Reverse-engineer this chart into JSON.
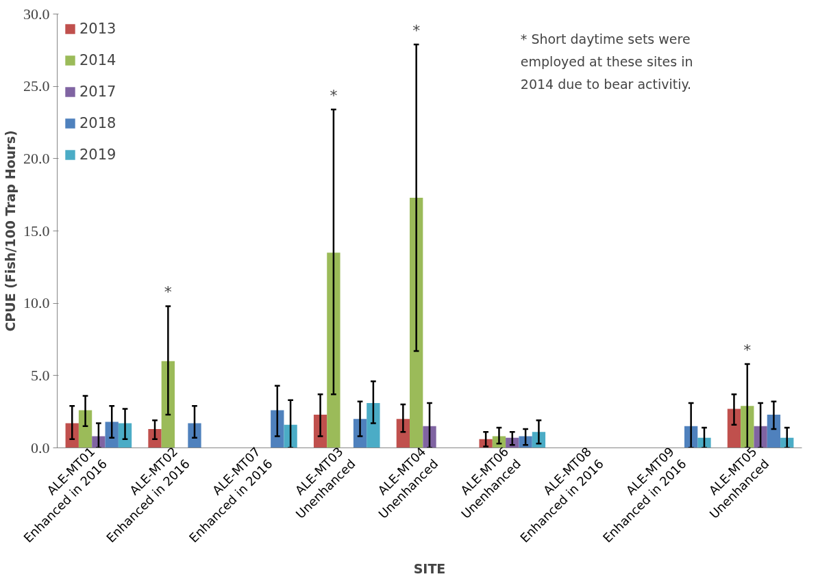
{
  "chart_data": {
    "type": "bar",
    "categories": [
      "ALE-MT01\nEnhanced in 2016",
      "ALE-MT02\nEnhanced in 2016",
      "ALE-MT07\nEnhanced in 2016",
      "ALE-MT03\nUnenhanced",
      "ALE-MT04\nUnenhanced",
      "ALE-MT06\nUnenhanced",
      "ALE-MT08\nEnhanced in 2016",
      "ALE-MT09\nEnhanced in 2016",
      "ALE-MT05\nUnenhanced"
    ],
    "xlabel": "SITE",
    "ylabel": "CPUE (Fish/100 Trap Hours)",
    "ylim": [
      0,
      30
    ],
    "yticks": [
      {
        "value": 0,
        "label": "0.0"
      },
      {
        "value": 5,
        "label": "5.0"
      },
      {
        "value": 10,
        "label": "10.0"
      },
      {
        "value": 15,
        "label": "15.0"
      },
      {
        "value": 20,
        "label": "20.0"
      },
      {
        "value": 25,
        "label": "25.0"
      },
      {
        "value": 30,
        "label": "30.0"
      }
    ],
    "grid": false,
    "legend": "top left",
    "series": [
      {
        "name": "2013",
        "color": "#c0504d",
        "values": [
          1.7,
          1.3,
          null,
          2.3,
          2.0,
          0.6,
          null,
          null,
          2.7
        ],
        "errors": [
          [
            0.6,
            2.9
          ],
          [
            0.6,
            1.9
          ],
          null,
          [
            0.8,
            3.7
          ],
          [
            1.1,
            3.0
          ],
          [
            0.1,
            1.1
          ],
          null,
          null,
          [
            1.6,
            3.7
          ]
        ]
      },
      {
        "name": "2014",
        "color": "#9bbb59",
        "values": [
          2.6,
          6.0,
          null,
          13.5,
          17.3,
          0.8,
          null,
          null,
          2.9
        ],
        "errors": [
          [
            1.5,
            3.6
          ],
          [
            2.3,
            9.8
          ],
          null,
          [
            3.7,
            23.4
          ],
          [
            6.7,
            27.9
          ],
          [
            0.3,
            1.4
          ],
          null,
          null,
          [
            0,
            5.8
          ]
        ]
      },
      {
        "name": "2017",
        "color": "#8064a2",
        "values": [
          0.8,
          null,
          null,
          null,
          1.5,
          0.7,
          null,
          null,
          1.5
        ],
        "errors": [
          [
            0,
            1.7
          ],
          null,
          null,
          null,
          [
            0,
            3.1
          ],
          [
            0.2,
            1.1
          ],
          null,
          null,
          [
            0,
            3.1
          ]
        ]
      },
      {
        "name": "2018",
        "color": "#4f81bd",
        "values": [
          1.8,
          1.7,
          2.6,
          2.0,
          null,
          0.8,
          null,
          1.5,
          2.3
        ],
        "errors": [
          [
            0.7,
            2.9
          ],
          [
            0.7,
            2.9
          ],
          [
            0.8,
            4.3
          ],
          [
            0.8,
            3.2
          ],
          null,
          [
            0.2,
            1.3
          ],
          null,
          [
            0,
            3.1
          ],
          [
            1.3,
            3.2
          ]
        ]
      },
      {
        "name": "2019",
        "color": "#4bacc6",
        "values": [
          1.7,
          null,
          1.6,
          3.1,
          null,
          1.1,
          null,
          0.7,
          0.7
        ],
        "errors": [
          [
            0.6,
            2.7
          ],
          null,
          [
            0,
            3.3
          ],
          [
            1.7,
            4.6
          ],
          null,
          [
            0.3,
            1.9
          ],
          null,
          [
            0,
            1.4
          ],
          [
            0,
            1.4
          ]
        ]
      }
    ],
    "annotations": [
      "*",
      "*",
      "*",
      "*",
      "* Short daytime sets were employed at these sites in 2014 due to bear activitiy."
    ]
  }
}
